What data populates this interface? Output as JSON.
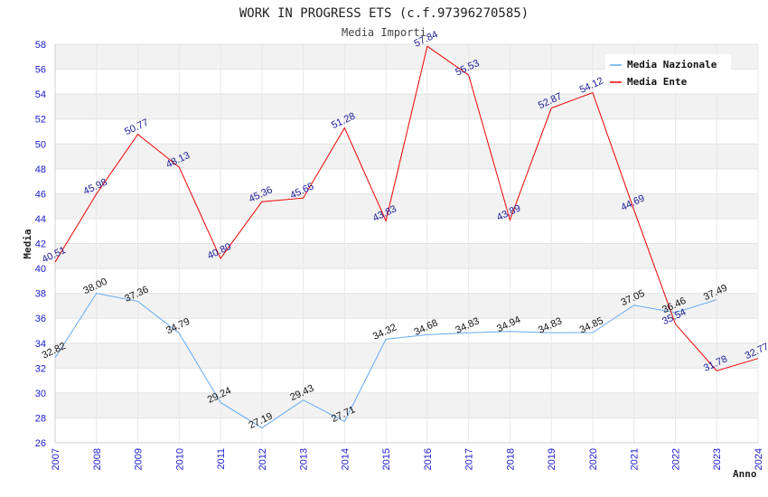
{
  "chart_data": {
    "type": "line",
    "title": "WORK IN PROGRESS ETS (c.f.97396270585)",
    "subtitle": "Media Importi",
    "xlabel": "Anno",
    "ylabel": "Media",
    "categories": [
      "2007",
      "2008",
      "2009",
      "2010",
      "2011",
      "2012",
      "2013",
      "2014",
      "2015",
      "2016",
      "2017",
      "2018",
      "2019",
      "2020",
      "2021",
      "2022",
      "2023",
      "2024"
    ],
    "ylim": [
      26,
      58
    ],
    "yticks": [
      "26",
      "28",
      "30",
      "32",
      "34",
      "36",
      "38",
      "40",
      "42",
      "44",
      "46",
      "48",
      "50",
      "52",
      "54",
      "56",
      "58"
    ],
    "legend_position": "top-right",
    "series": [
      {
        "name": "Media Nazionale",
        "color": "#66aaee",
        "values": [
          32.82,
          38.0,
          37.36,
          34.79,
          29.24,
          27.19,
          29.43,
          27.71,
          34.32,
          34.68,
          34.83,
          34.94,
          34.83,
          34.85,
          37.05,
          36.46,
          37.49,
          null
        ],
        "labels": [
          "32.82",
          "38.00",
          "37.36",
          "34.79",
          "29.24",
          "27.19",
          "29.43",
          "27.71",
          "34.32",
          "34.68",
          "34.83",
          "34.94",
          "34.83",
          "34.85",
          "37.05",
          "36.46",
          "37.49",
          ""
        ]
      },
      {
        "name": "Media Ente",
        "color": "#ee0000",
        "values": [
          40.51,
          45.98,
          50.77,
          48.13,
          40.8,
          45.36,
          45.65,
          51.28,
          43.83,
          57.84,
          55.53,
          43.89,
          52.87,
          54.12,
          44.69,
          35.54,
          31.78,
          32.77
        ],
        "labels": [
          "40.51",
          "45.98",
          "50.77",
          "48.13",
          "40.80",
          "45.36",
          "45.65",
          "51.28",
          "43.83",
          "57.84",
          "55.53",
          "43.89",
          "52.87",
          "54.12",
          "44.69",
          "35.54",
          "31.78",
          "32.77"
        ]
      }
    ]
  }
}
